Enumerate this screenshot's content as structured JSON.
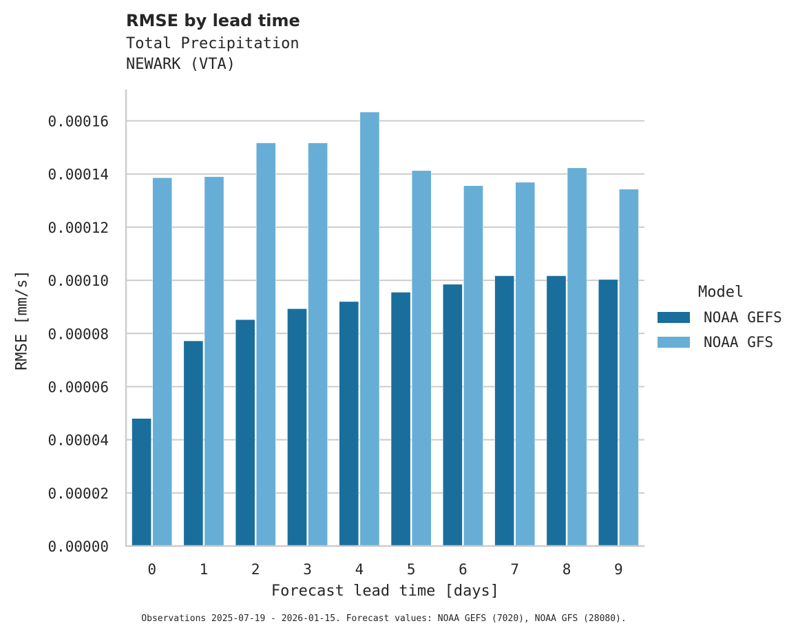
{
  "header": {
    "title": "RMSE by lead time",
    "subtitle_1": "Total Precipitation",
    "subtitle_2": "NEWARK (VTA)"
  },
  "axes": {
    "xlabel": "Forecast lead time [days]",
    "ylabel": "RMSE [mm/s]"
  },
  "legend": {
    "title": "Model",
    "items": [
      {
        "label": "NOAA GEFS",
        "color": "#1a6e9c"
      },
      {
        "label": "NOAA GFS",
        "color": "#67aed7"
      }
    ]
  },
  "footnote": "Observations 2025-07-19 - 2026-01-15. Forecast values: NOAA GEFS (7020), NOAA GFS (28080).",
  "chart_data": {
    "type": "bar",
    "title": "RMSE by lead time",
    "subtitle": "Total Precipitation — NEWARK (VTA)",
    "xlabel": "Forecast lead time [days]",
    "ylabel": "RMSE [mm/s]",
    "categories": [
      "0",
      "1",
      "2",
      "3",
      "4",
      "5",
      "6",
      "7",
      "8",
      "9"
    ],
    "series": [
      {
        "name": "NOAA GEFS",
        "color": "#1a6e9c",
        "values": [
          4.8e-05,
          7.72e-05,
          8.52e-05,
          8.93e-05,
          9.2e-05,
          9.55e-05,
          9.85e-05,
          0.0001017,
          0.0001017,
          0.0001003
        ]
      },
      {
        "name": "NOAA GFS",
        "color": "#67aed7",
        "values": [
          0.0001386,
          0.000139,
          0.0001517,
          0.0001517,
          0.0001633,
          0.0001413,
          0.0001356,
          0.0001369,
          0.0001423,
          0.0001343
        ]
      }
    ],
    "ylim": [
      0,
      0.000172
    ],
    "yticks": [
      "0.00000",
      "0.00002",
      "0.00004",
      "0.00006",
      "0.00008",
      "0.00010",
      "0.00012",
      "0.00014",
      "0.00016"
    ],
    "grid": "horizontal",
    "legend_position": "right"
  }
}
